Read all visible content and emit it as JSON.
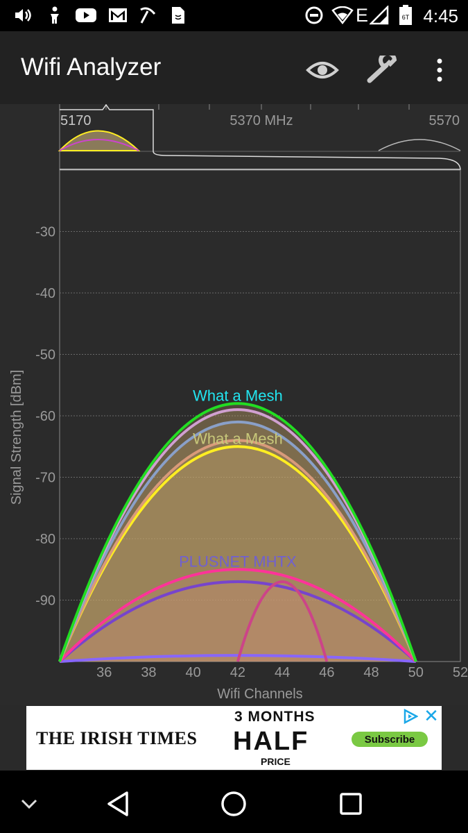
{
  "status_bar": {
    "time": "4:45",
    "network_type": "E",
    "sim_label": "6T"
  },
  "app_bar": {
    "title": "Wifi Analyzer"
  },
  "chart_data": {
    "type": "area",
    "xlabel": "Wifi Channels",
    "ylabel": "Signal Strength [dBm]",
    "xlim": [
      34,
      52
    ],
    "ylim": [
      -100,
      -20
    ],
    "x_ticks": [
      "36",
      "38",
      "40",
      "42",
      "44",
      "46",
      "48",
      "50",
      "52"
    ],
    "y_ticks": [
      "-30",
      "-40",
      "-50",
      "-60",
      "-70",
      "-80",
      "-90"
    ],
    "grid": true,
    "series": [
      {
        "name": "What a Mesh",
        "channel": 42,
        "span": [
          34,
          50
        ],
        "peak": -58,
        "color": "#22dd22",
        "label_color": "#22e5f0",
        "label_visible": true
      },
      {
        "name": "",
        "channel": 42,
        "span": [
          34,
          50
        ],
        "peak": -59,
        "color": "#d0a0d0",
        "label_visible": false
      },
      {
        "name": "",
        "channel": 42,
        "span": [
          34,
          50
        ],
        "peak": -61,
        "color": "#8aa0c8",
        "label_visible": false
      },
      {
        "name": "",
        "channel": 42,
        "span": [
          34,
          50
        ],
        "peak": -64,
        "color": "#d99a7a",
        "label_visible": false
      },
      {
        "name": "What a Mesh",
        "channel": 42,
        "span": [
          34,
          50
        ],
        "peak": -65,
        "color": "#ffee22",
        "label_color": "#c8c87a",
        "label_visible": true
      },
      {
        "name": "PLUSNET MHTX",
        "channel": 42,
        "span": [
          34,
          50
        ],
        "peak": -85,
        "color": "#ff3399",
        "label_color": "#7060d0",
        "label_visible": true
      },
      {
        "name": "",
        "channel": 42,
        "span": [
          34,
          50
        ],
        "peak": -87,
        "color": "#7744cc",
        "label_visible": false
      },
      {
        "name": "",
        "channel": 42,
        "span": [
          34,
          50
        ],
        "peak": -99,
        "color": "#8866ff",
        "label_visible": false
      },
      {
        "name": "",
        "channel": 44,
        "span": [
          42,
          46
        ],
        "peak": -87,
        "color": "#cc4488",
        "label_visible": false
      }
    ],
    "overview": {
      "labels": [
        "5170",
        "5370 MHz",
        "5570"
      ]
    }
  },
  "ad": {
    "brand": "THE IRISH TIMES",
    "line1": "3 MONTHS",
    "line2": "HALF",
    "line3": "PRICE",
    "button": "Subscribe",
    "close_glyph": "✕"
  },
  "colors": {
    "background": "#2b2b2b",
    "app_bar": "#222222",
    "grid": "#666666",
    "axis_text": "#9a9a9a"
  }
}
